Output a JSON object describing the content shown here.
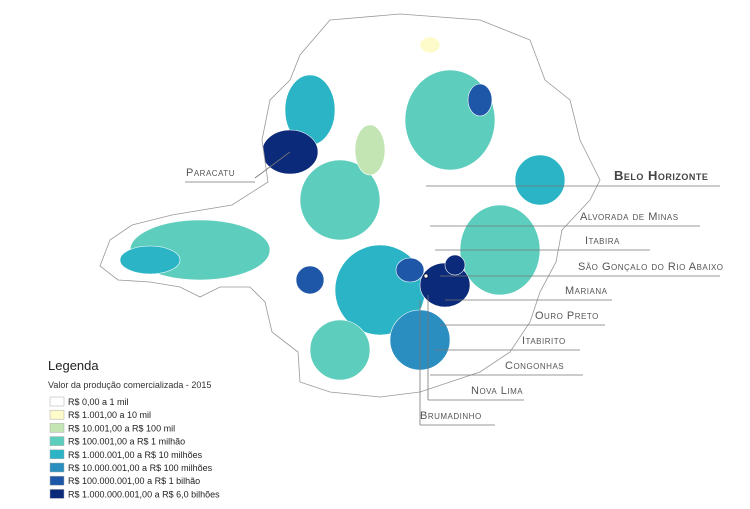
{
  "map": {
    "labels": [
      "Paracatu",
      "Belo Horizonte",
      "Alvorada de Minas",
      "Itabira",
      "São Gonçalo do Rio Abaixo",
      "Mariana",
      "Ouro Preto",
      "Itabirito",
      "Congonhas",
      "Nova Lima",
      "Brumadinho"
    ]
  },
  "legend": {
    "title": "Legenda",
    "subtitle": "Valor da produção comercializada - 2015",
    "items": [
      {
        "label": "R$ 0,00 a 1 mil",
        "color": "#ffffff"
      },
      {
        "label": "R$ 1.001,00 a 10 mil",
        "color": "#fdfbc9"
      },
      {
        "label": "R$ 10.001,00 a R$ 100 mil",
        "color": "#c2e5b3"
      },
      {
        "label": "R$ 100.001,00 a R$ 1 milhão",
        "color": "#5dcdbd"
      },
      {
        "label": "R$ 1.000.001,00 a R$ 10 milhões",
        "color": "#2bb4c5"
      },
      {
        "label": "R$ 10.000.001,00 a R$ 100 milhões",
        "color": "#2a8ec0"
      },
      {
        "label": "R$ 100.000.001,00 a R$ 1 bilhão",
        "color": "#1f57a8"
      },
      {
        "label": "R$ 1.000.000.001,00 a R$ 6,0 bilhões",
        "color": "#0b2a7a"
      }
    ]
  }
}
